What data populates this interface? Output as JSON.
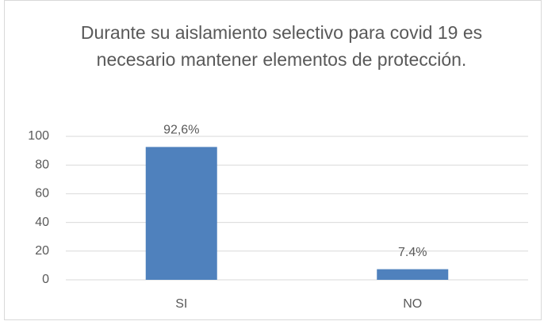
{
  "chart_data": {
    "type": "bar",
    "title": "Durante su aislamiento selectivo para covid 19 es necesario mantener elementos de protección.",
    "categories": [
      "SI",
      "NO"
    ],
    "values": [
      92.6,
      7.4
    ],
    "value_labels": [
      "92,6%",
      "7.4%"
    ],
    "color": "#4f81bd",
    "ylim": [
      0,
      100
    ],
    "yticks": [
      0,
      20,
      40,
      60,
      80,
      100
    ],
    "grid": true
  }
}
